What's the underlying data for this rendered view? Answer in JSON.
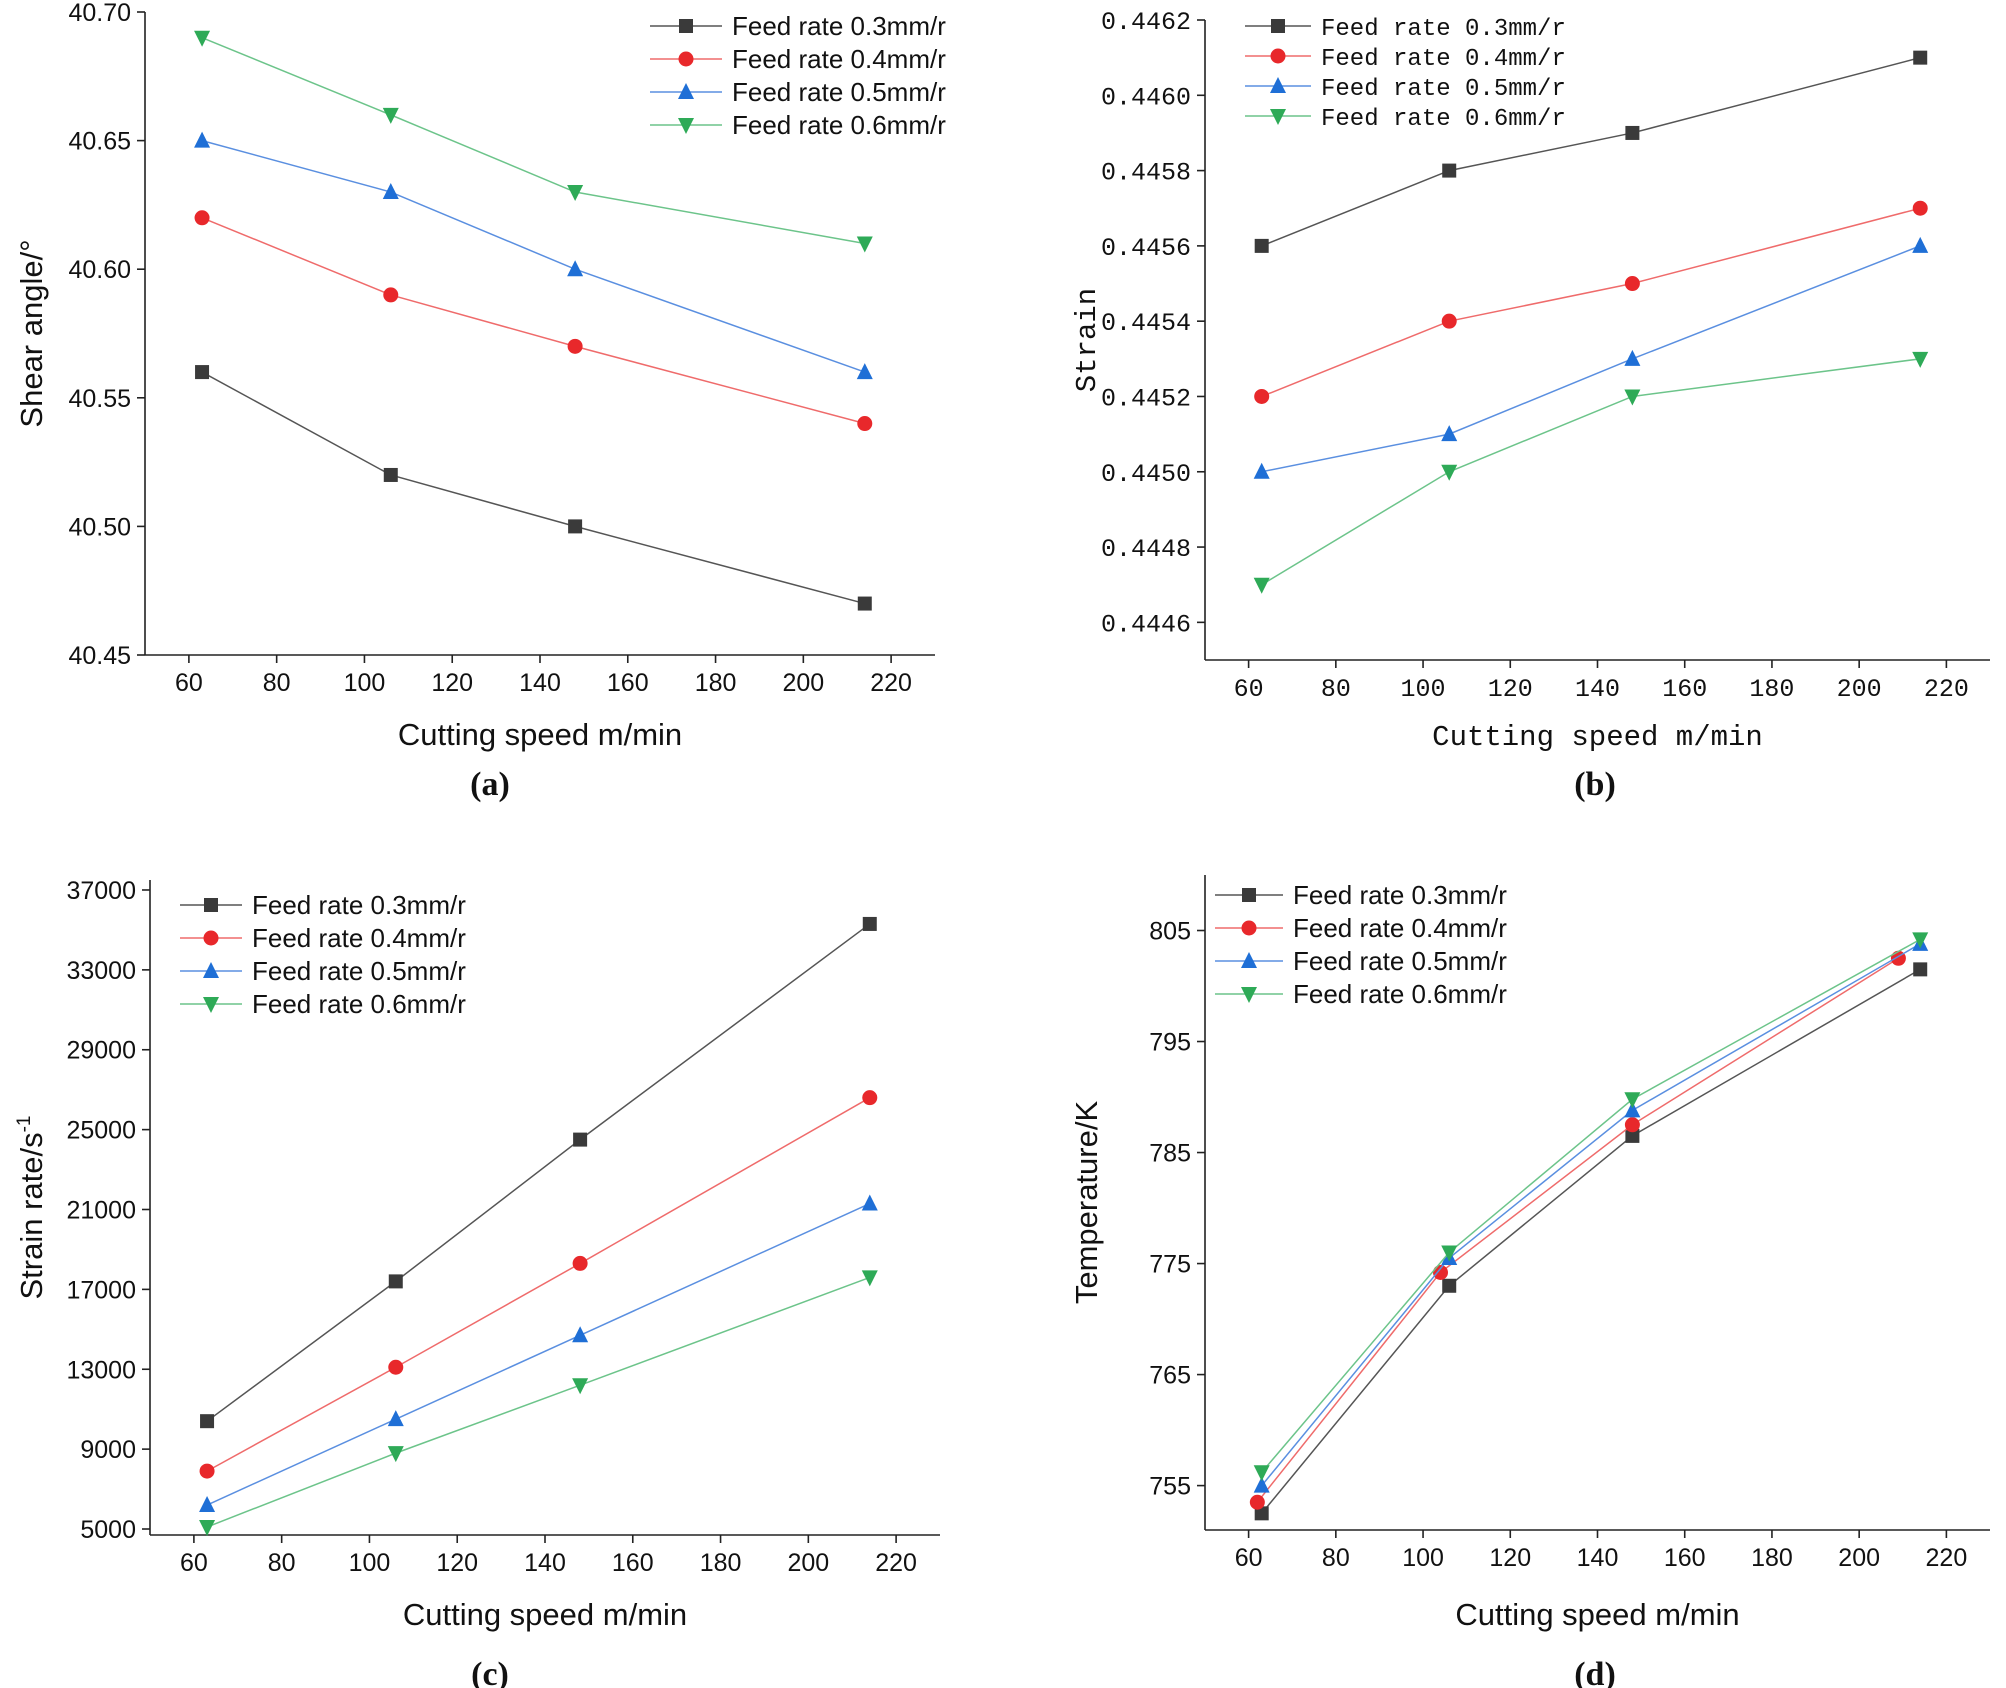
{
  "colors": {
    "series": [
      "#3a3a3a",
      "#e8282b",
      "#1f6fd6",
      "#2eaa57"
    ],
    "series_line": [
      "#555555",
      "#ef6b6b",
      "#5a8fe0",
      "#6cc48a"
    ]
  },
  "chart_data": [
    {
      "id": "a",
      "type": "line",
      "caption": "(a)",
      "xlabel": "Cutting speed m/min",
      "ylabel": "Shear angle/°",
      "xlim": [
        50,
        230
      ],
      "ylim": [
        40.45,
        40.7
      ],
      "xticks": [
        60,
        80,
        100,
        120,
        140,
        160,
        180,
        200,
        220
      ],
      "yticks": [
        "40.45",
        "40.50",
        "40.55",
        "40.60",
        "40.65",
        "40.70"
      ],
      "legend_position": "top-right",
      "series": [
        {
          "name": "Feed rate 0.3mm/r",
          "marker": "square",
          "x": [
            63,
            106,
            148,
            214
          ],
          "y": [
            40.56,
            40.52,
            40.5,
            40.47
          ]
        },
        {
          "name": "Feed rate 0.4mm/r",
          "marker": "circle",
          "x": [
            63,
            106,
            148,
            214
          ],
          "y": [
            40.62,
            40.59,
            40.57,
            40.54
          ]
        },
        {
          "name": "Feed rate 0.5mm/r",
          "marker": "triangle-up",
          "x": [
            63,
            106,
            148,
            214
          ],
          "y": [
            40.65,
            40.63,
            40.6,
            40.56
          ]
        },
        {
          "name": "Feed rate 0.6mm/r",
          "marker": "triangle-down",
          "x": [
            63,
            106,
            148,
            214
          ],
          "y": [
            40.69,
            40.66,
            40.63,
            40.61
          ]
        }
      ]
    },
    {
      "id": "b",
      "type": "line",
      "caption": "(b)",
      "xlabel": "Cutting speed m/min",
      "ylabel": "Strain",
      "xlim": [
        50,
        230
      ],
      "ylim": [
        0.4445,
        0.4462
      ],
      "xticks": [
        60,
        80,
        100,
        120,
        140,
        160,
        180,
        200,
        220
      ],
      "yticks": [
        "0.4446",
        "0.4448",
        "0.4450",
        "0.4452",
        "0.4454",
        "0.4456",
        "0.4458",
        "0.4460",
        "0.4462"
      ],
      "legend_position": "top-left",
      "series": [
        {
          "name": "Feed rate 0.3mm/r",
          "marker": "square",
          "x": [
            63,
            106,
            148,
            214
          ],
          "y": [
            0.4456,
            0.4458,
            0.4459,
            0.4461
          ]
        },
        {
          "name": "Feed rate 0.4mm/r",
          "marker": "circle",
          "x": [
            63,
            106,
            148,
            214
          ],
          "y": [
            0.4452,
            0.4454,
            0.4455,
            0.4457
          ]
        },
        {
          "name": "Feed rate 0.5mm/r",
          "marker": "triangle-up",
          "x": [
            63,
            106,
            148,
            214
          ],
          "y": [
            0.445,
            0.4451,
            0.4453,
            0.4456
          ]
        },
        {
          "name": "Feed rate 0.6mm/r",
          "marker": "triangle-down",
          "x": [
            63,
            106,
            148,
            214
          ],
          "y": [
            0.4447,
            0.445,
            0.4452,
            0.4453
          ]
        }
      ]
    },
    {
      "id": "c",
      "type": "line",
      "caption": "(c)",
      "xlabel": "Cutting speed m/min",
      "ylabel": "Strain rate/s",
      "ylabel_sup": "-1",
      "xlim": [
        50,
        230
      ],
      "ylim": [
        4700,
        37500
      ],
      "xticks": [
        60,
        80,
        100,
        120,
        140,
        160,
        180,
        200,
        220
      ],
      "yticks": [
        "5000",
        "9000",
        "13000",
        "17000",
        "21000",
        "25000",
        "29000",
        "33000",
        "37000"
      ],
      "legend_position": "top-left",
      "series": [
        {
          "name": "Feed rate 0.3mm/r",
          "marker": "square",
          "x": [
            63,
            106,
            148,
            214
          ],
          "y": [
            10400,
            17400,
            24500,
            35300
          ]
        },
        {
          "name": "Feed rate 0.4mm/r",
          "marker": "circle",
          "x": [
            63,
            106,
            148,
            214
          ],
          "y": [
            7900,
            13100,
            18300,
            26600
          ]
        },
        {
          "name": "Feed rate 0.5mm/r",
          "marker": "triangle-up",
          "x": [
            63,
            106,
            148,
            214
          ],
          "y": [
            6200,
            10500,
            14700,
            21300
          ]
        },
        {
          "name": "Feed rate 0.6mm/r",
          "marker": "triangle-down",
          "x": [
            63,
            106,
            148,
            214
          ],
          "y": [
            5100,
            8800,
            12200,
            17600
          ]
        }
      ]
    },
    {
      "id": "d",
      "type": "line",
      "caption": "(d)",
      "xlabel": "Cutting speed m/min",
      "ylabel": "Temperature/K",
      "xlim": [
        50,
        230
      ],
      "ylim": [
        751,
        810
      ],
      "xticks": [
        60,
        80,
        100,
        120,
        140,
        160,
        180,
        200,
        220
      ],
      "yticks": [
        "755",
        "765",
        "775",
        "785",
        "795",
        "805"
      ],
      "legend_position": "top-left",
      "series": [
        {
          "name": "Feed rate 0.3mm/r",
          "marker": "square",
          "x": [
            63,
            106,
            148,
            214
          ],
          "y": [
            752.5,
            773,
            786.5,
            801.5
          ]
        },
        {
          "name": "Feed rate 0.4mm/r",
          "marker": "circle",
          "x": [
            62,
            104,
            148,
            209
          ],
          "y": [
            753.5,
            774.2,
            787.5,
            802.5
          ]
        },
        {
          "name": "Feed rate 0.5mm/r",
          "marker": "triangle-up",
          "x": [
            63,
            106,
            148,
            214
          ],
          "y": [
            755,
            775.5,
            788.8,
            803.8
          ]
        },
        {
          "name": "Feed rate 0.6mm/r",
          "marker": "triangle-down",
          "x": [
            63,
            106,
            148,
            214
          ],
          "y": [
            756.2,
            776,
            789.8,
            804.2
          ]
        }
      ]
    }
  ]
}
